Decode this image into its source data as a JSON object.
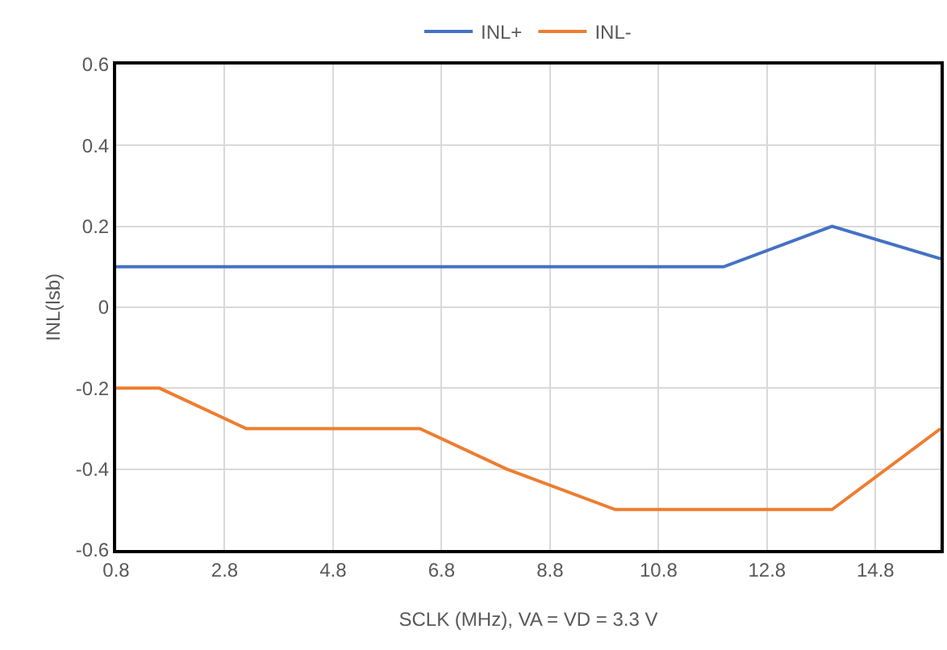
{
  "chart_data": {
    "type": "line",
    "xlabel": "SCLK (MHz), VA = VD = 3.3 V",
    "ylabel": "INL(lsb)",
    "x": [
      0.8,
      1.6,
      3.2,
      6.4,
      8,
      10,
      12,
      14,
      16
    ],
    "series": [
      {
        "name": "INL+",
        "color": "#4472c4",
        "values": [
          0.1,
          0.1,
          0.1,
          0.1,
          0.1,
          0.1,
          0.1,
          0.2,
          0.12
        ]
      },
      {
        "name": "INL-",
        "color": "#ed7d31",
        "values": [
          -0.2,
          -0.2,
          -0.3,
          -0.3,
          -0.4,
          -0.5,
          -0.5,
          -0.5,
          -0.3
        ]
      }
    ],
    "xlim": [
      0.8,
      16
    ],
    "xticks": [
      0.8,
      2.8,
      4.8,
      6.8,
      8.8,
      10.8,
      12.8,
      14.8
    ],
    "ylim": [
      -0.6,
      0.6
    ],
    "yticks": [
      -0.6,
      -0.4,
      -0.2,
      0,
      0.2,
      0.4,
      0.6
    ],
    "grid": true,
    "legend": "top",
    "marker": "none",
    "line_style": "solid"
  }
}
